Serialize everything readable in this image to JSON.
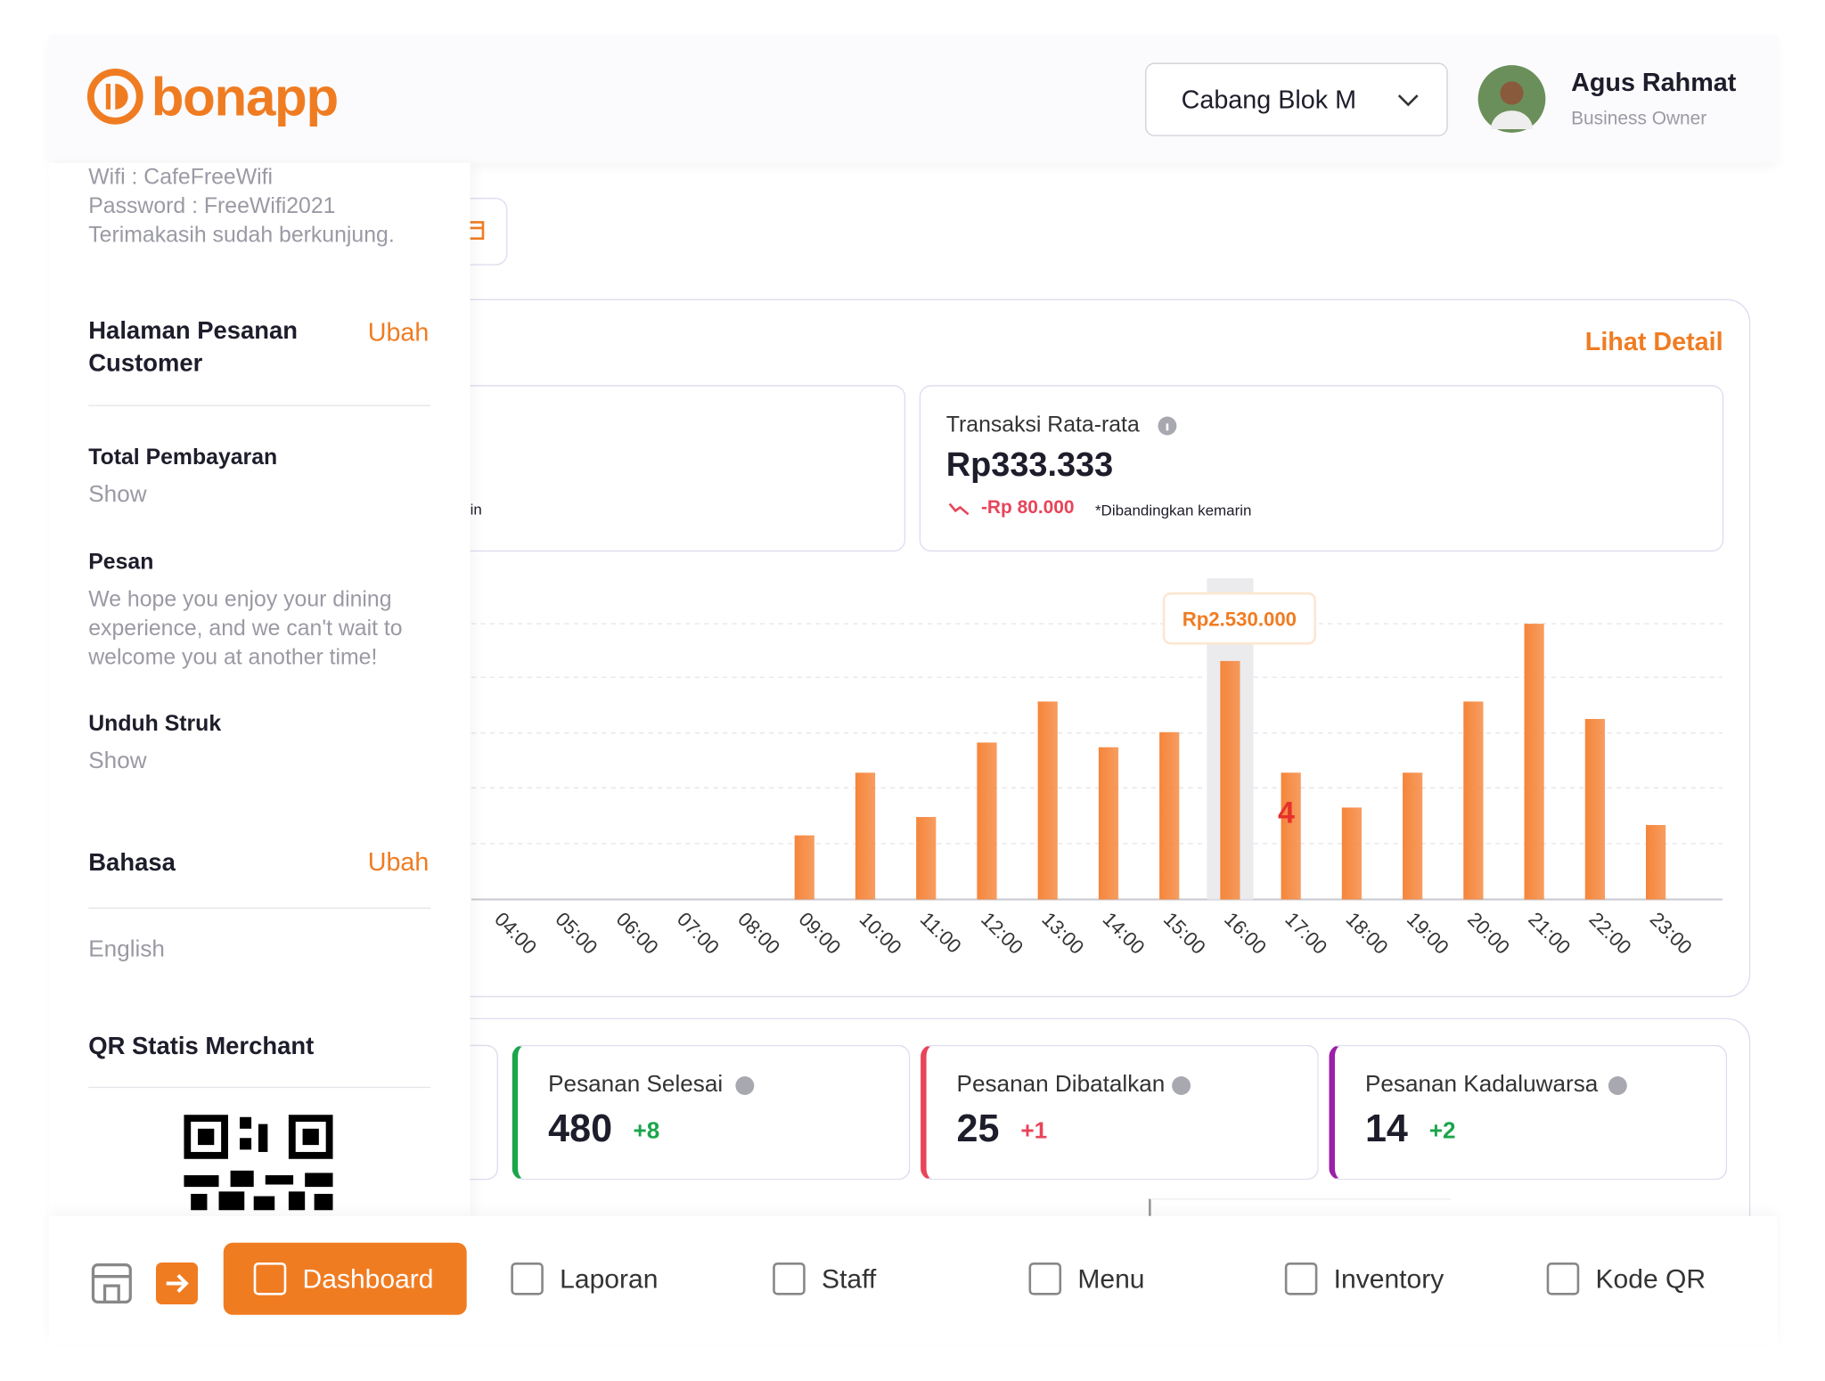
{
  "header": {
    "logo": "bonapp",
    "branch": "Cabang Blok M",
    "user_name": "Agus Rahmat",
    "user_role": "Business Owner"
  },
  "sidebar": {
    "receipt_lines": [
      "Wifi : CafeFreeWifi",
      "Password : FreeWifi2021",
      "Terimakasih sudah berkunjung."
    ],
    "order_page": {
      "title": "Halaman Pesanan Customer",
      "action": "Ubah"
    },
    "settings": [
      {
        "label": "Total Pembayaran",
        "value": "Show"
      },
      {
        "label": "Pesan",
        "value": "We hope you enjoy your dining experience, and we can't wait to welcome you at another time!"
      },
      {
        "label": "Unduh Struk",
        "value": "Show"
      }
    ],
    "language": {
      "title": "Bahasa",
      "action": "Ubah",
      "value": "English"
    },
    "qr_title": "QR Statis Merchant"
  },
  "sales": {
    "link": "Lihat Detail",
    "partial_caption": "in",
    "average": {
      "label": "Transaksi Rata-rata",
      "value": "Rp333.333",
      "change": "-Rp 80.000",
      "note": "*Dibandingkan kemarin"
    }
  },
  "chart_data": {
    "type": "bar",
    "categories": [
      "04:00",
      "05:00",
      "06:00",
      "07:00",
      "08:00",
      "09:00",
      "10:00",
      "11:00",
      "12:00",
      "13:00",
      "14:00",
      "15:00",
      "16:00",
      "17:00",
      "18:00",
      "19:00",
      "20:00",
      "21:00",
      "22:00",
      "23:00"
    ],
    "values": [
      0,
      0,
      0,
      0,
      0,
      680000,
      1345000,
      875000,
      1665000,
      2100000,
      1615000,
      1775000,
      2530000,
      1345000,
      975000,
      1345000,
      2100000,
      2925000,
      1915000,
      790000
    ],
    "value_labels": [
      null,
      null,
      null,
      null,
      null,
      null,
      null,
      null,
      null,
      null,
      null,
      null,
      "Rp2.530.000",
      null,
      null,
      null,
      null,
      null,
      null,
      null
    ],
    "color": "#f5853a",
    "ylim": [
      0,
      3000000
    ],
    "grid": true,
    "annotation": "4"
  },
  "order_stats": [
    {
      "label": "Pesanan Selesai",
      "value": 480,
      "change": "+8",
      "color": "#1aa54b",
      "change_color": "#1aa54b"
    },
    {
      "label": "Pesanan Dibatalkan",
      "value": 25,
      "change": "+1",
      "color": "#e8445a",
      "change_color": "#e8445a"
    },
    {
      "label": "Pesanan Kadaluwarsa",
      "value": 14,
      "change": "+2",
      "color": "#9b1fa8",
      "change_color": "#1aa54b"
    }
  ],
  "nav": {
    "items": [
      "Dashboard",
      "Laporan",
      "Staff",
      "Menu",
      "Inventory",
      "Kode QR"
    ],
    "active": 0
  }
}
